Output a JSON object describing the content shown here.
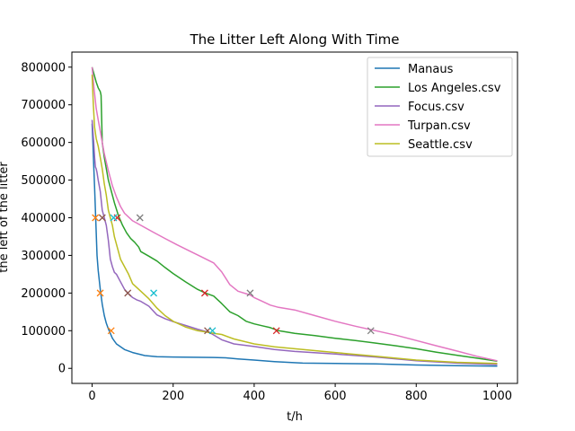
{
  "chart_data": {
    "type": "line",
    "title": "The Litter Left Along With Time",
    "xlabel": "t/h",
    "ylabel": "the left of the litter",
    "xlim": [
      -50,
      1050
    ],
    "ylim": [
      -40000,
      840000
    ],
    "xticks": [
      0,
      200,
      400,
      600,
      800,
      1000
    ],
    "yticks": [
      0,
      100000,
      200000,
      300000,
      400000,
      500000,
      600000,
      700000,
      800000
    ],
    "grid": false,
    "legend_position": "top-right",
    "series": [
      {
        "name": "Manaus",
        "color": "#1f77b4",
        "x": [
          0,
          2,
          4,
          6,
          8,
          10,
          12,
          15,
          20,
          25,
          30,
          35,
          40,
          50,
          60,
          80,
          100,
          130,
          160,
          200,
          250,
          300,
          330,
          360,
          400,
          450,
          520,
          600,
          700,
          800,
          900,
          1000
        ],
        "y": [
          650000,
          600000,
          540000,
          480000,
          420000,
          360000,
          300000,
          260000,
          210000,
          170000,
          140000,
          120000,
          105000,
          80000,
          65000,
          50000,
          42000,
          34000,
          31000,
          30000,
          29500,
          29000,
          28000,
          25000,
          22000,
          18000,
          14000,
          13000,
          12000,
          9000,
          7000,
          6000
        ]
      },
      {
        "name": "Los Angeles.csv",
        "color": "#2ca02c",
        "x": [
          0,
          5,
          10,
          15,
          20,
          22,
          25,
          30,
          40,
          55,
          65,
          75,
          85,
          95,
          105,
          115,
          120,
          140,
          160,
          180,
          200,
          230,
          260,
          280,
          300,
          320,
          340,
          360,
          380,
          400,
          420,
          440,
          460,
          500,
          550,
          600,
          650,
          700,
          750,
          800,
          850,
          900,
          950,
          1000
        ],
        "y": [
          800000,
          780000,
          760000,
          745000,
          735000,
          725000,
          600000,
          560000,
          500000,
          440000,
          405000,
          380000,
          360000,
          345000,
          335000,
          322000,
          310000,
          298000,
          285000,
          268000,
          252000,
          230000,
          210000,
          200000,
          192000,
          172000,
          150000,
          140000,
          125000,
          118000,
          113000,
          108000,
          100000,
          93000,
          87000,
          80000,
          74000,
          67000,
          60000,
          52000,
          43000,
          35000,
          27000,
          19000
        ]
      },
      {
        "name": "Focus.csv",
        "color": "#9467bd",
        "x": [
          0,
          2,
          4,
          6,
          8,
          10,
          12,
          15,
          20,
          25,
          30,
          35,
          40,
          45,
          50,
          55,
          60,
          70,
          80,
          90,
          100,
          110,
          120,
          140,
          160,
          180,
          200,
          230,
          260,
          290,
          320,
          350,
          400,
          450,
          500,
          600,
          700,
          800,
          900,
          1000
        ],
        "y": [
          660000,
          630000,
          600000,
          560000,
          535000,
          530000,
          520000,
          500000,
          470000,
          420000,
          400000,
          380000,
          340000,
          290000,
          270000,
          255000,
          250000,
          230000,
          210000,
          198000,
          188000,
          182000,
          178000,
          165000,
          142000,
          132000,
          124000,
          114000,
          104000,
          95000,
          76000,
          65000,
          58000,
          50000,
          45000,
          38000,
          30000,
          20000,
          14000,
          10000
        ]
      },
      {
        "name": "Turpan.csv",
        "color": "#e377c2",
        "x": [
          0,
          5,
          10,
          15,
          20,
          25,
          30,
          40,
          50,
          60,
          70,
          80,
          100,
          120,
          150,
          180,
          210,
          240,
          270,
          300,
          320,
          340,
          360,
          390,
          400,
          420,
          440,
          460,
          500,
          550,
          600,
          650,
          700,
          750,
          800,
          850,
          900,
          950,
          1000
        ],
        "y": [
          800000,
          740000,
          690000,
          660000,
          630000,
          600000,
          570000,
          525000,
          485000,
          455000,
          430000,
          412000,
          392000,
          380000,
          362000,
          345000,
          328000,
          312000,
          296000,
          280000,
          256000,
          222000,
          205000,
          195000,
          188000,
          178000,
          168000,
          162000,
          155000,
          140000,
          125000,
          112000,
          100000,
          88000,
          74000,
          60000,
          46000,
          32000,
          20000
        ]
      },
      {
        "name": "Seattle.csv",
        "color": "#bcbd22",
        "x": [
          0,
          3,
          6,
          10,
          15,
          20,
          25,
          30,
          35,
          40,
          45,
          50,
          55,
          60,
          70,
          80,
          90,
          100,
          120,
          140,
          160,
          180,
          200,
          230,
          260,
          290,
          300,
          320,
          350,
          400,
          450,
          500,
          600,
          700,
          800,
          900,
          1000
        ],
        "y": [
          780000,
          700000,
          640000,
          610000,
          590000,
          560000,
          530000,
          490000,
          460000,
          420000,
          400000,
          380000,
          350000,
          330000,
          290000,
          270000,
          250000,
          225000,
          205000,
          185000,
          160000,
          140000,
          125000,
          110000,
          100000,
          95000,
          93000,
          90000,
          78000,
          65000,
          57000,
          52000,
          42000,
          32000,
          22000,
          16000,
          13000
        ]
      }
    ],
    "markers": [
      {
        "x": 8,
        "y": 400000,
        "color": "#ff7f0e"
      },
      {
        "x": 20,
        "y": 200000,
        "color": "#ff7f0e"
      },
      {
        "x": 47,
        "y": 100000,
        "color": "#ff7f0e"
      },
      {
        "x": 25,
        "y": 400000,
        "color": "#8c564b"
      },
      {
        "x": 88,
        "y": 200000,
        "color": "#8c564b"
      },
      {
        "x": 285,
        "y": 100000,
        "color": "#8c564b"
      },
      {
        "x": 62,
        "y": 400000,
        "color": "#d62728"
      },
      {
        "x": 278,
        "y": 200000,
        "color": "#d62728"
      },
      {
        "x": 455,
        "y": 100000,
        "color": "#d62728"
      },
      {
        "x": 118,
        "y": 400000,
        "color": "#7f7f7f"
      },
      {
        "x": 390,
        "y": 200000,
        "color": "#7f7f7f"
      },
      {
        "x": 688,
        "y": 100000,
        "color": "#7f7f7f"
      },
      {
        "x": 53,
        "y": 400000,
        "color": "#17becf"
      },
      {
        "x": 152,
        "y": 200000,
        "color": "#17becf"
      },
      {
        "x": 297,
        "y": 100000,
        "color": "#17becf"
      }
    ]
  }
}
